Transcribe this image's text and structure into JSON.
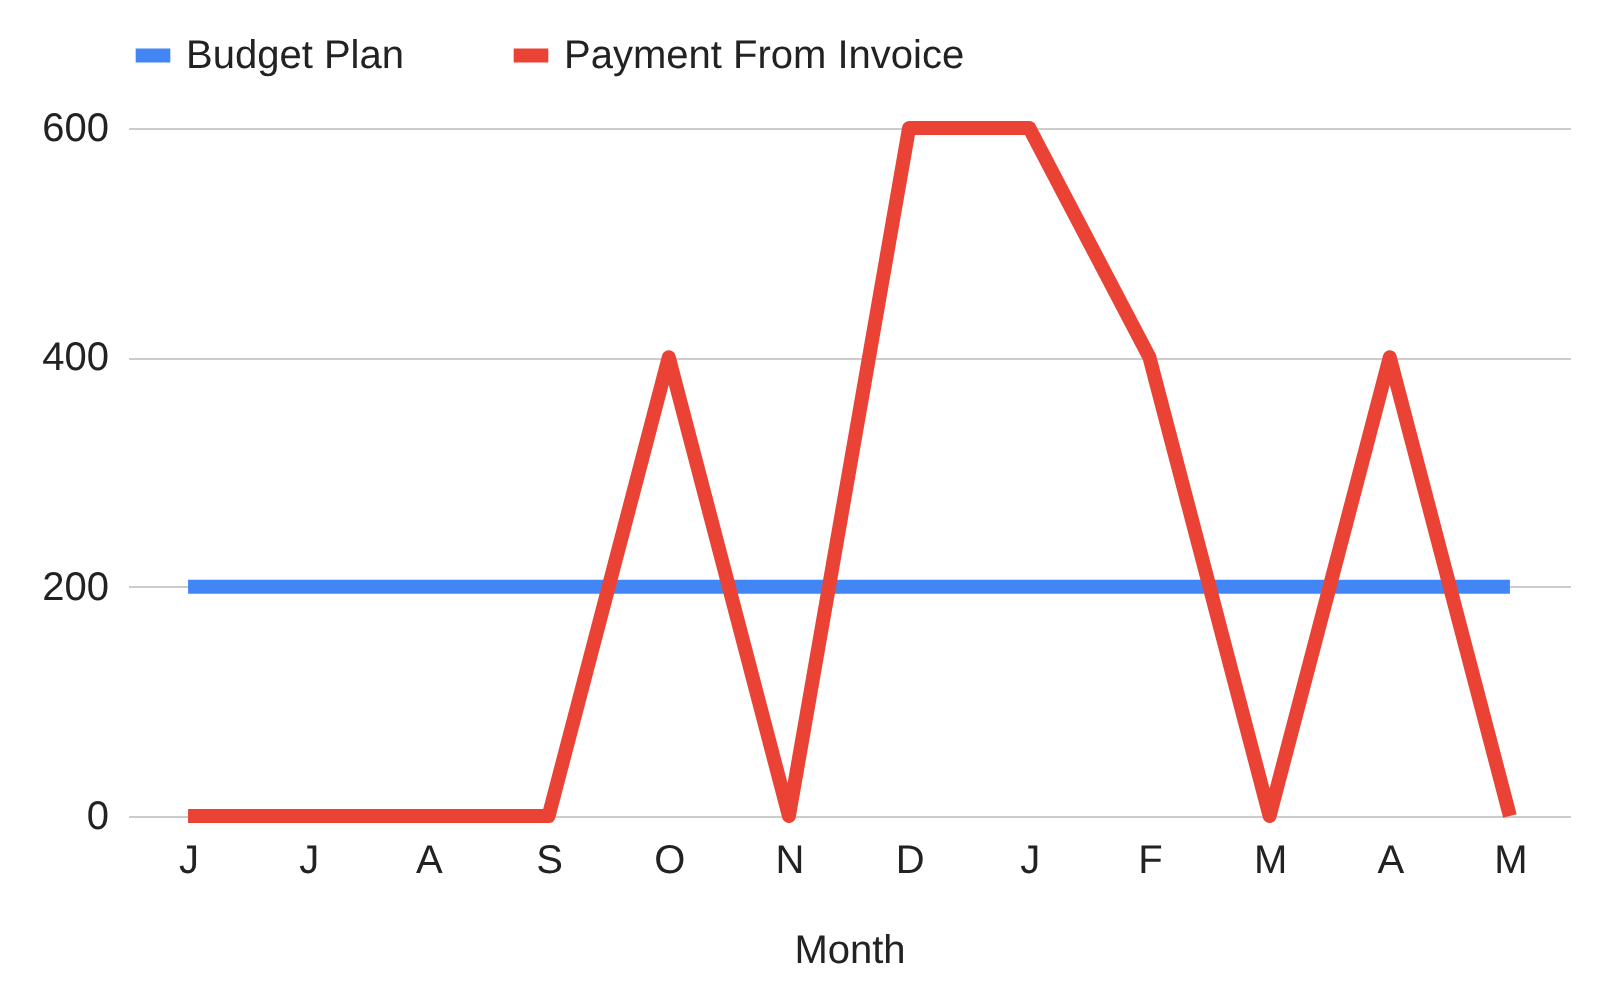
{
  "chart_data": {
    "type": "line",
    "xlabel": "Month",
    "categories": [
      "J",
      "J",
      "A",
      "S",
      "O",
      "N",
      "D",
      "J",
      "F",
      "M",
      "A",
      "M"
    ],
    "series": [
      {
        "name": "Budget Plan",
        "color": "#4285f4",
        "values": [
          200,
          200,
          200,
          200,
          200,
          200,
          200,
          200,
          200,
          200,
          200,
          200
        ]
      },
      {
        "name": "Payment From Invoice",
        "color": "#ea4335",
        "values": [
          0,
          0,
          0,
          0,
          400,
          0,
          600,
          600,
          400,
          0,
          400,
          0
        ]
      }
    ],
    "ylim": [
      0,
      600
    ],
    "yticks": [
      0,
      200,
      400,
      600
    ],
    "grid": "y",
    "legend": "top",
    "marker": "none",
    "line_style": "solid"
  }
}
